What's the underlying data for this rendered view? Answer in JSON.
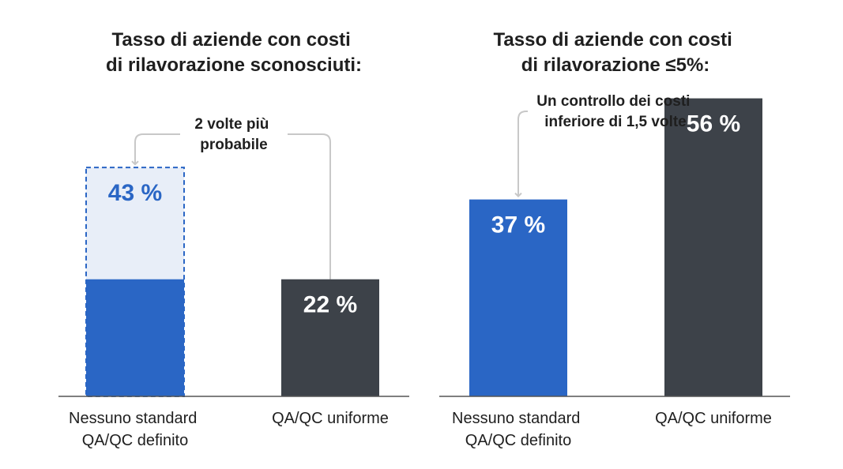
{
  "chart_data": [
    {
      "type": "bar",
      "title_lines": [
        "Tasso di aziende con costi",
        "di rilavorazione sconosciuti:"
      ],
      "categories": [
        [
          "Nessuno standard",
          "QA/QC definito"
        ],
        [
          "QA/QC uniforme"
        ]
      ],
      "values": [
        43,
        22
      ],
      "value_labels": [
        "43 %",
        "22 %"
      ],
      "bar_colors": [
        "#2a66c5",
        "#3d4249"
      ],
      "value_label_colors": [
        "#2a66c5",
        "#ffffff"
      ],
      "highlight": {
        "style": "dashed-outline",
        "fill": "#e8eef8",
        "stroke": "#2a66c5",
        "solid_base_value": 22
      },
      "annotation_lines": [
        "2 volte più",
        "probabile"
      ],
      "ylim": [
        0,
        60
      ]
    },
    {
      "type": "bar",
      "title_lines": [
        "Tasso di aziende con costi",
        "di rilavorazione ≤5%:"
      ],
      "categories": [
        [
          "Nessuno standard",
          "QA/QC definito"
        ],
        [
          "QA/QC uniforme"
        ]
      ],
      "values": [
        37,
        56
      ],
      "value_labels": [
        "37 %",
        "56 %"
      ],
      "bar_colors": [
        "#2a66c5",
        "#3d4249"
      ],
      "value_label_colors": [
        "#ffffff",
        "#ffffff"
      ],
      "annotation_lines": [
        "Un controllo dei costi",
        "inferiore di 1,5 volte"
      ],
      "ylim": [
        0,
        60
      ]
    }
  ],
  "colors": {
    "baseline": "#555555",
    "connector": "#c8c8c8",
    "text": "#1f1f1f"
  }
}
